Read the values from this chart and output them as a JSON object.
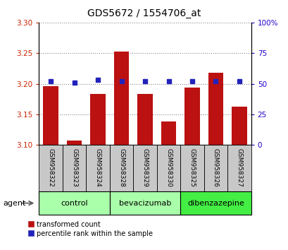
{
  "title": "GDS5672 / 1554706_at",
  "samples": [
    "GSM958322",
    "GSM958323",
    "GSM958324",
    "GSM958328",
    "GSM958329",
    "GSM958330",
    "GSM958325",
    "GSM958326",
    "GSM958327"
  ],
  "red_values": [
    3.196,
    3.107,
    3.183,
    3.253,
    3.183,
    3.138,
    3.194,
    3.218,
    3.163
  ],
  "blue_percentiles": [
    52,
    51,
    53,
    52,
    52,
    52,
    52,
    52,
    52
  ],
  "ylim_left": [
    3.1,
    3.3
  ],
  "ylim_right": [
    0,
    100
  ],
  "yticks_left": [
    3.1,
    3.15,
    3.2,
    3.25,
    3.3
  ],
  "yticks_right": [
    0,
    25,
    50,
    75,
    100
  ],
  "groups": [
    {
      "label": "control",
      "indices": [
        0,
        1,
        2
      ],
      "color": "#aaffaa"
    },
    {
      "label": "bevacizumab",
      "indices": [
        3,
        4,
        5
      ],
      "color": "#aaffaa"
    },
    {
      "label": "dibenzazepine",
      "indices": [
        6,
        7,
        8
      ],
      "color": "#44ee44"
    }
  ],
  "bar_color": "#bb1111",
  "dot_color": "#2222bb",
  "tick_color_left": "#cc2200",
  "tick_color_right": "#2200cc",
  "agent_label": "agent",
  "legend_red": "transformed count",
  "legend_blue": "percentile rank within the sample"
}
